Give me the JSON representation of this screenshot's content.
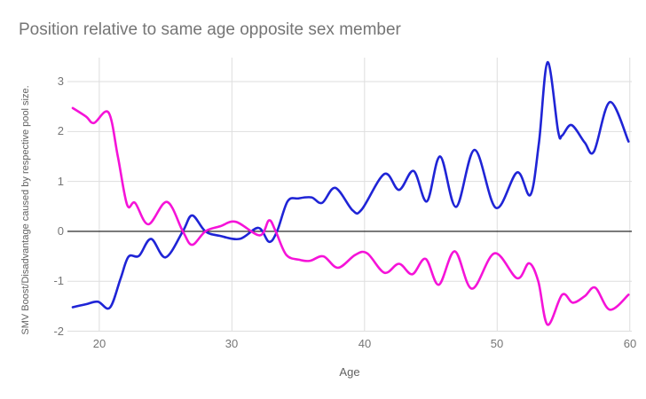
{
  "chart_data": {
    "type": "line",
    "title": "Position relative to same age opposite sex member",
    "xlabel": "Age",
    "ylabel": "SMV Boost/Disadvantage caused by respective pool size.",
    "x_ticks": [
      20,
      30,
      40,
      50,
      60
    ],
    "y_ticks": [
      3,
      2,
      1,
      0,
      -1,
      -2
    ],
    "xlim": [
      17.6,
      60.15
    ],
    "ylim": [
      -2.0,
      3.48
    ],
    "grid": true,
    "legend_position": "none",
    "zero_line": true,
    "colors": {
      "gridline": "#dedede",
      "zero_line": "#111111",
      "tick_label": "#757575",
      "axis_title": "#616161",
      "title": "#757575",
      "background": "#ffffff"
    },
    "series": [
      {
        "name": "blue-line",
        "color": "#1f24d6",
        "points": [
          [
            18,
            -1.52
          ],
          [
            19,
            -1.46
          ],
          [
            19.9,
            -1.41
          ],
          [
            20.8,
            -1.53
          ],
          [
            21.6,
            -0.95
          ],
          [
            22.2,
            -0.51
          ],
          [
            23,
            -0.49
          ],
          [
            23.9,
            -0.15
          ],
          [
            25,
            -0.52
          ],
          [
            26.3,
            0
          ],
          [
            27,
            0.32
          ],
          [
            28,
            0
          ],
          [
            29.1,
            -0.09
          ],
          [
            30.6,
            -0.15
          ],
          [
            32,
            0.07
          ],
          [
            32.8,
            -0.21
          ],
          [
            33.4,
            0
          ],
          [
            34.2,
            0.6
          ],
          [
            35,
            0.66
          ],
          [
            36,
            0.68
          ],
          [
            36.8,
            0.57
          ],
          [
            37.8,
            0.87
          ],
          [
            39.1,
            0.42
          ],
          [
            39.8,
            0.44
          ],
          [
            41.5,
            1.15
          ],
          [
            42.6,
            0.83
          ],
          [
            43.7,
            1.21
          ],
          [
            44.7,
            0.6
          ],
          [
            45.7,
            1.5
          ],
          [
            46.9,
            0.49
          ],
          [
            48.3,
            1.63
          ],
          [
            49.9,
            0.47
          ],
          [
            51.5,
            1.18
          ],
          [
            52.5,
            0.73
          ],
          [
            53.15,
            1.78
          ],
          [
            53.8,
            3.39
          ],
          [
            54.6,
            2.0
          ],
          [
            54.9,
            1.92
          ],
          [
            55.6,
            2.13
          ],
          [
            56.6,
            1.78
          ],
          [
            57.3,
            1.6
          ],
          [
            58.5,
            2.59
          ],
          [
            59.9,
            1.8
          ]
        ]
      },
      {
        "name": "magenta-line",
        "color": "#f513d8",
        "points": [
          [
            18,
            2.47
          ],
          [
            19,
            2.3
          ],
          [
            19.6,
            2.17
          ],
          [
            20.7,
            2.38
          ],
          [
            21.4,
            1.5
          ],
          [
            22.1,
            0.53
          ],
          [
            22.7,
            0.57
          ],
          [
            23.7,
            0.14
          ],
          [
            25.1,
            0.59
          ],
          [
            26.3,
            0
          ],
          [
            27,
            -0.27
          ],
          [
            28,
            0
          ],
          [
            29.1,
            0.1
          ],
          [
            30.3,
            0.19
          ],
          [
            32.1,
            -0.08
          ],
          [
            32.8,
            0.22
          ],
          [
            33.3,
            0
          ],
          [
            34.1,
            -0.47
          ],
          [
            35.1,
            -0.57
          ],
          [
            35.9,
            -0.59
          ],
          [
            36.9,
            -0.5
          ],
          [
            38,
            -0.73
          ],
          [
            39.3,
            -0.47
          ],
          [
            40.2,
            -0.44
          ],
          [
            41.5,
            -0.83
          ],
          [
            42.6,
            -0.65
          ],
          [
            43.6,
            -0.86
          ],
          [
            44.6,
            -0.55
          ],
          [
            45.6,
            -1.07
          ],
          [
            46.8,
            -0.4
          ],
          [
            48.1,
            -1.15
          ],
          [
            49.8,
            -0.44
          ],
          [
            51.5,
            -0.94
          ],
          [
            52.4,
            -0.64
          ],
          [
            53.1,
            -1.0
          ],
          [
            53.8,
            -1.87
          ],
          [
            54.9,
            -1.27
          ],
          [
            55.7,
            -1.43
          ],
          [
            56.6,
            -1.3
          ],
          [
            57.4,
            -1.13
          ],
          [
            58.5,
            -1.57
          ],
          [
            59.9,
            -1.27
          ]
        ]
      }
    ]
  }
}
